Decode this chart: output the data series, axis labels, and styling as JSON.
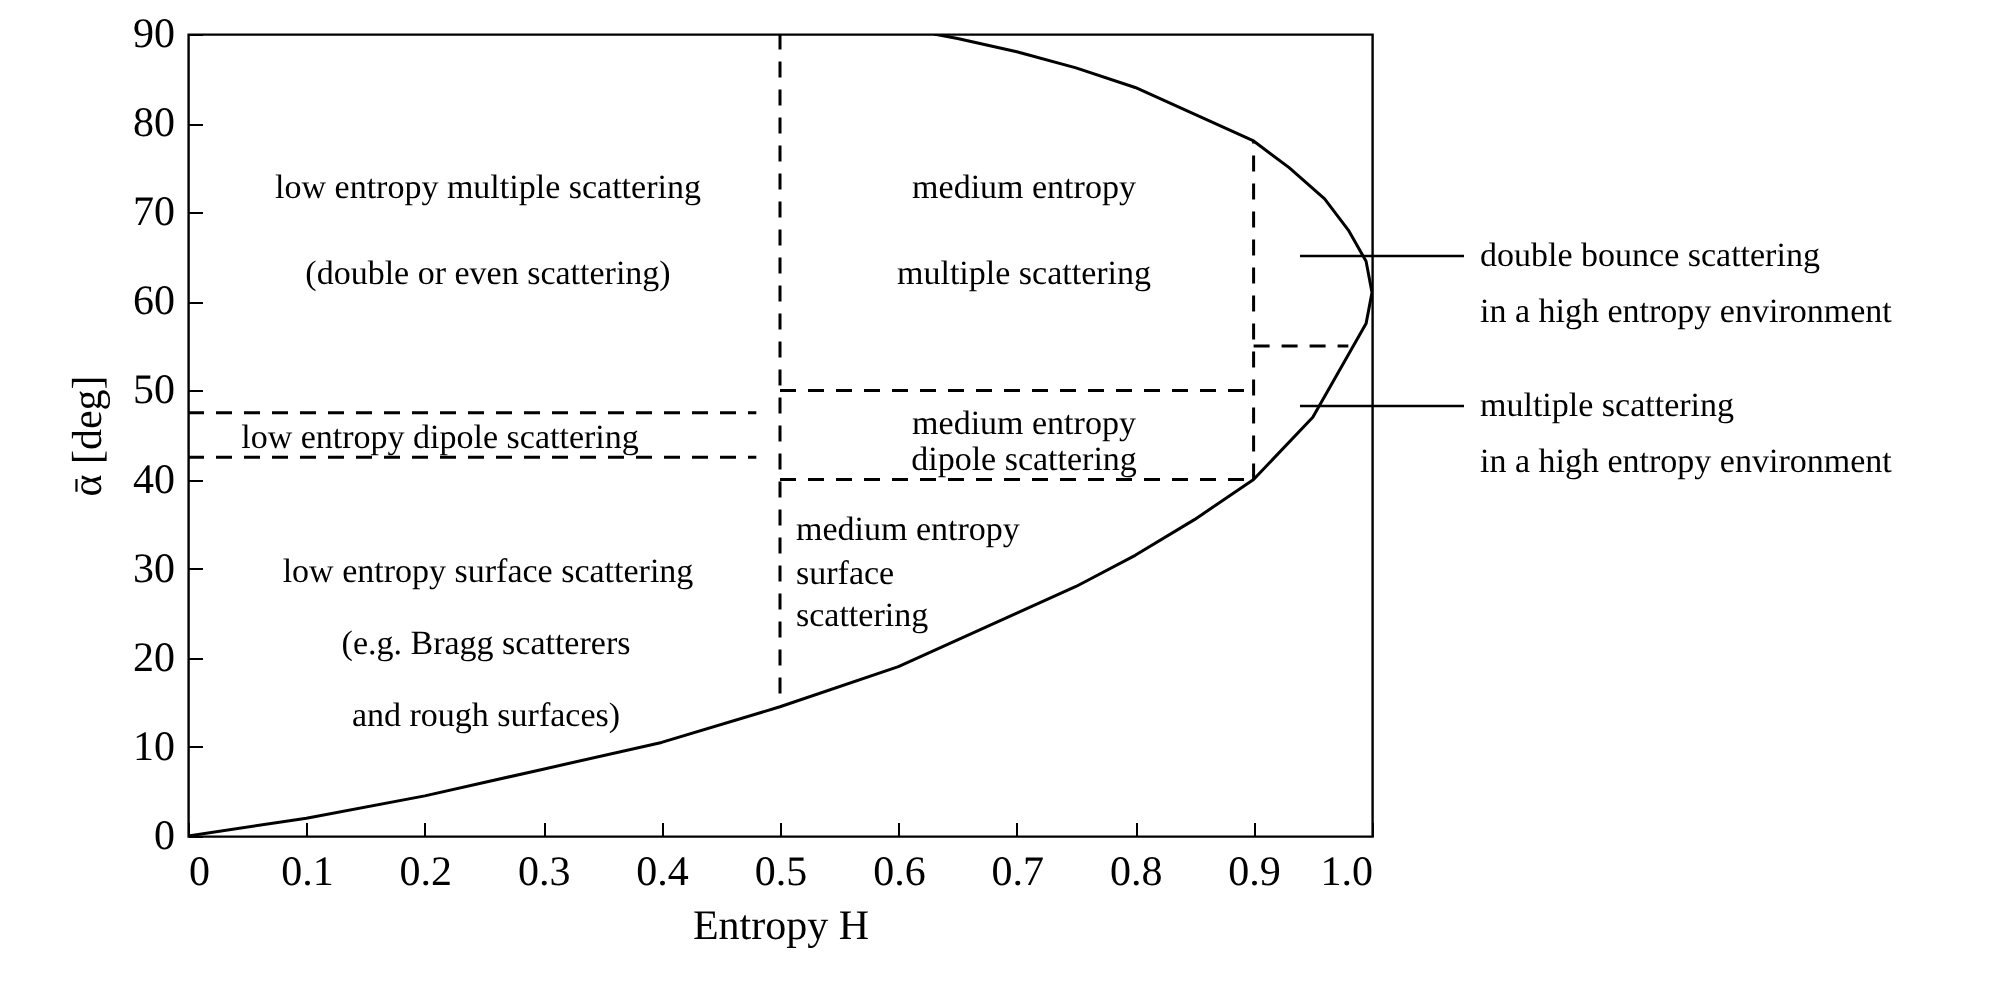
{
  "chart_data": {
    "type": "line",
    "xlabel": "Entropy H",
    "ylabel": "ᾱ [deg]",
    "xlim": [
      0,
      1
    ],
    "ylim": [
      0,
      90
    ],
    "xticks": [
      0,
      0.1,
      0.2,
      0.3,
      0.4,
      0.5,
      0.6,
      0.7,
      0.8,
      0.9,
      {
        "value": 1,
        "label": "1.0"
      }
    ],
    "yticks": [
      0,
      10,
      20,
      30,
      40,
      50,
      60,
      70,
      80,
      90
    ],
    "grid": false,
    "marker": "none",
    "series": [
      {
        "color": "#000000",
        "line_style": "solid",
        "x": [
          0,
          0.1,
          0.2,
          0.3,
          0.4,
          0.5,
          0.6,
          0.65,
          0.7,
          0.75,
          0.8,
          0.85,
          0.9,
          0.95,
          0.98,
          0.995,
          1.0,
          0.995,
          0.98,
          0.96,
          0.93,
          0.9,
          0.85,
          0.8,
          0.75,
          0.7,
          0.65,
          0.63
        ],
        "values": [
          0,
          2,
          4.5,
          7.5,
          10.5,
          14.5,
          19,
          22,
          25,
          28,
          31.5,
          35.5,
          40,
          47,
          54,
          57.5,
          61,
          64.5,
          68,
          71.5,
          75,
          78,
          81,
          84,
          86.2,
          88,
          89.5,
          90
        ]
      },
      {
        "color": "#000000",
        "line_style": "dashed",
        "x": [
          0.5,
          0.5
        ],
        "values": [
          16,
          90
        ]
      },
      {
        "color": "#000000",
        "line_style": "dashed",
        "x": [
          0.9,
          0.9
        ],
        "values": [
          40,
          78
        ]
      },
      {
        "color": "#000000",
        "line_style": "dashed",
        "x": [
          0,
          0.48
        ],
        "values": [
          47.5,
          47.5
        ]
      },
      {
        "color": "#000000",
        "line_style": "dashed",
        "x": [
          0,
          0.48
        ],
        "values": [
          42.5,
          42.5
        ]
      },
      {
        "color": "#000000",
        "line_style": "dashed",
        "x": [
          0.5,
          0.9
        ],
        "values": [
          50,
          50
        ]
      },
      {
        "color": "#000000",
        "line_style": "dashed",
        "x": [
          0.5,
          0.9
        ],
        "values": [
          40,
          40
        ]
      },
      {
        "color": "#000000",
        "line_style": "dashed",
        "x": [
          0.9,
          0.98
        ],
        "values": [
          55,
          55
        ]
      }
    ],
    "annotations": [
      "low entropy multiple scattering",
      "(double or even scattering)",
      "medium entropy",
      "multiple scattering",
      "low entropy dipole scattering",
      "medium entropy",
      "dipole scattering",
      "low entropy surface scattering",
      "(e.g. Bragg scatterers",
      "and rough surfaces)",
      "medium entropy",
      "surface",
      "scattering",
      "double bounce scattering\nin a high entropy environment",
      "multiple scattering\nin a high entropy environment"
    ]
  }
}
